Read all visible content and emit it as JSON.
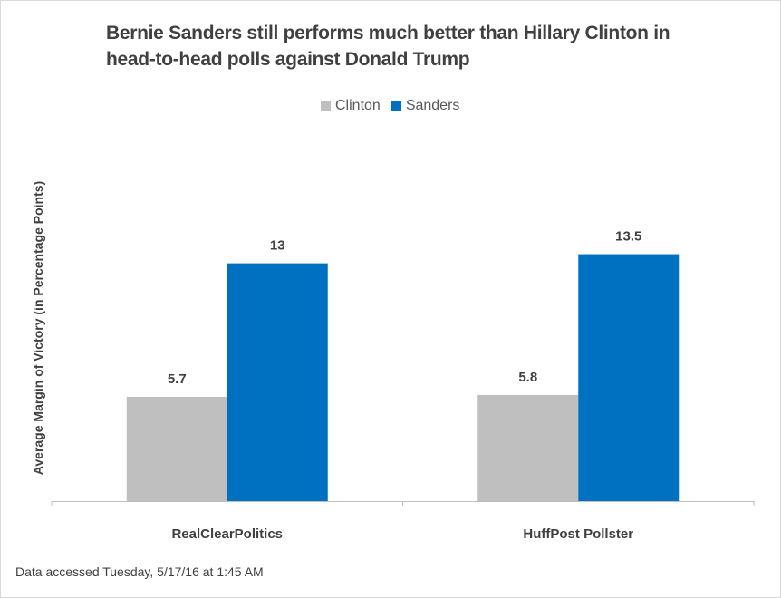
{
  "chart_data": {
    "type": "bar",
    "title": "Bernie Sanders still performs much better than Hillary Clinton in head-to-head polls against Donald Trump",
    "title_lines": [
      "Bernie Sanders still performs much better than Hillary Clinton in",
      "head-to-head polls against Donald Trump"
    ],
    "ylabel": "Average Margin of Victory (in Percentage Points)",
    "xlabel": "",
    "categories": [
      "RealClearPolitics",
      "HuffPost Pollster"
    ],
    "series": [
      {
        "name": "Clinton",
        "values": [
          5.7,
          5.8
        ],
        "labels": [
          "5.7",
          "5.8"
        ],
        "color": "#bfbfbf"
      },
      {
        "name": "Sanders",
        "values": [
          13,
          13.5
        ],
        "labels": [
          "13",
          "13.5"
        ],
        "color": "#0070c0"
      }
    ],
    "ylim": [
      0,
      16.5
    ],
    "grid": false,
    "legend_position": "top-center",
    "footnote": "Data accessed Tuesday, 5/17/16 at 1:45 AM"
  }
}
